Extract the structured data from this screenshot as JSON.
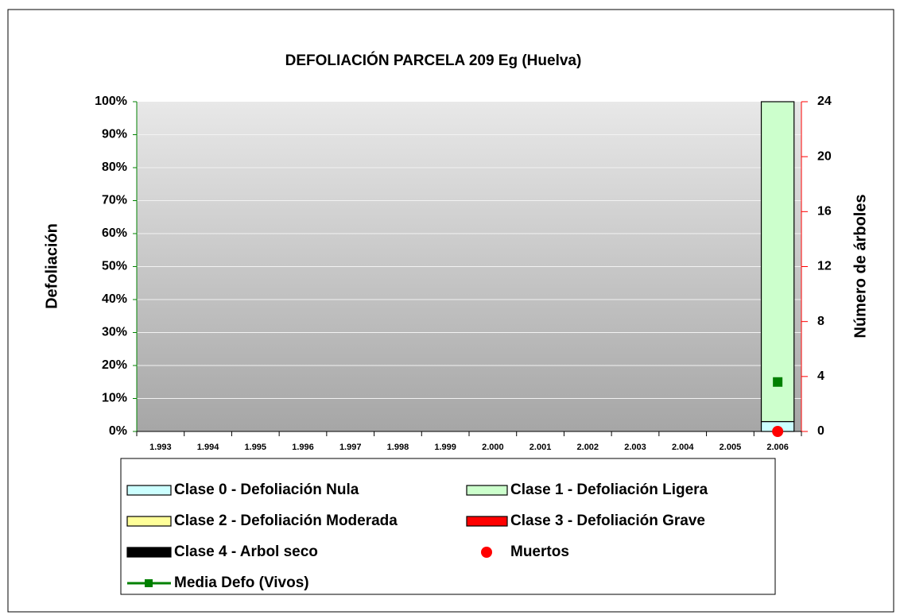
{
  "chart_data": {
    "type": "bar",
    "stacked": true,
    "title": "DEFOLIACIÓN PARCELA 209 Eg (Huelva)",
    "ylabel": "Defoliación",
    "y2label": "Número de árboles",
    "categories": [
      "1.993",
      "1.994",
      "1.995",
      "1.996",
      "1.997",
      "1.998",
      "1.999",
      "2.000",
      "2.001",
      "2.002",
      "2.003",
      "2.004",
      "2.005",
      "2.006"
    ],
    "ylim": [
      0,
      100
    ],
    "yticks": [
      {
        "value": 0,
        "label": "0%"
      },
      {
        "value": 10,
        "label": "10%"
      },
      {
        "value": 20,
        "label": "20%"
      },
      {
        "value": 30,
        "label": "30%"
      },
      {
        "value": 40,
        "label": "40%"
      },
      {
        "value": 50,
        "label": "50%"
      },
      {
        "value": 60,
        "label": "60%"
      },
      {
        "value": 70,
        "label": "70%"
      },
      {
        "value": 80,
        "label": "80%"
      },
      {
        "value": 90,
        "label": "90%"
      },
      {
        "value": 100,
        "label": "100%"
      }
    ],
    "y2lim": [
      0,
      24
    ],
    "y2ticks": [
      0,
      4,
      8,
      12,
      16,
      20,
      24
    ],
    "grid": true,
    "series": [
      {
        "name": "Clase 0 - Defoliación Nula",
        "type": "bar",
        "color": "#ccffff",
        "values": [
          null,
          null,
          null,
          null,
          null,
          null,
          null,
          null,
          null,
          null,
          null,
          null,
          null,
          3
        ]
      },
      {
        "name": "Clase 1 - Defoliación Ligera",
        "type": "bar",
        "color": "#ccffcc",
        "values": [
          null,
          null,
          null,
          null,
          null,
          null,
          null,
          null,
          null,
          null,
          null,
          null,
          null,
          97
        ]
      },
      {
        "name": "Clase 2 - Defoliación Moderada",
        "type": "bar",
        "color": "#ffff99",
        "values": [
          null,
          null,
          null,
          null,
          null,
          null,
          null,
          null,
          null,
          null,
          null,
          null,
          null,
          0
        ]
      },
      {
        "name": "Clase 3 - Defoliación Grave",
        "type": "bar",
        "color": "#ff0000",
        "values": [
          null,
          null,
          null,
          null,
          null,
          null,
          null,
          null,
          null,
          null,
          null,
          null,
          null,
          0
        ]
      },
      {
        "name": "Clase 4 - Arbol seco",
        "type": "bar",
        "color": "#000000",
        "values": [
          null,
          null,
          null,
          null,
          null,
          null,
          null,
          null,
          null,
          null,
          null,
          null,
          null,
          0
        ]
      },
      {
        "name": "Muertos",
        "type": "scatter",
        "axis": "y2",
        "color": "#ff0000",
        "values": [
          null,
          null,
          null,
          null,
          null,
          null,
          null,
          null,
          null,
          null,
          null,
          null,
          null,
          0
        ]
      },
      {
        "name": "Media Defo (Vivos)",
        "type": "line",
        "color": "#008000",
        "values": [
          null,
          null,
          null,
          null,
          null,
          null,
          null,
          null,
          null,
          null,
          null,
          null,
          null,
          15
        ]
      }
    ]
  }
}
